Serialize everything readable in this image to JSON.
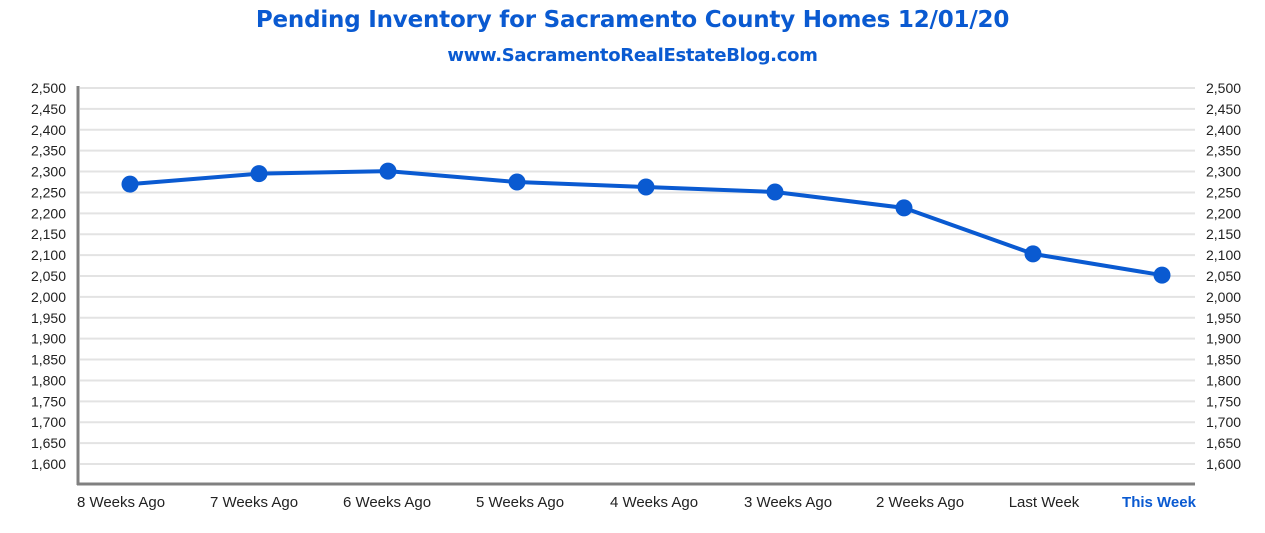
{
  "colors": {
    "accent": "#0a5ad1",
    "series": "#0a5ad1",
    "grid": "#e3e3e3",
    "axis": "#808080",
    "text": "#222222"
  },
  "chart_data": {
    "type": "line",
    "title": "Pending Inventory for Sacramento County Homes 12/01/20",
    "subtitle": "www.SacramentoRealEstateBlog.com",
    "xlabel": "",
    "ylabel": "",
    "categories": [
      "8 Weeks Ago",
      "7 Weeks Ago",
      "6 Weeks Ago",
      "5 Weeks Ago",
      "4 Weeks Ago",
      "3 Weeks Ago",
      "2 Weeks Ago",
      "Last Week",
      "This Week"
    ],
    "highlighted_category": "This Week",
    "series": [
      {
        "name": "Pending Inventory",
        "values": [
          2270,
          2295,
          2301,
          2275,
          2263,
          2251,
          2213,
          2103,
          2052
        ]
      }
    ],
    "ylim": [
      1600,
      2500
    ],
    "yticks": [
      1600,
      1650,
      1700,
      1750,
      1800,
      1850,
      1900,
      1950,
      2000,
      2050,
      2100,
      2150,
      2200,
      2250,
      2300,
      2350,
      2400,
      2450,
      2500
    ],
    "ytick_labels": [
      "1,600",
      "1,650",
      "1,700",
      "1,750",
      "1,800",
      "1,850",
      "1,900",
      "1,950",
      "2,000",
      "2,050",
      "2,100",
      "2,150",
      "2,200",
      "2,250",
      "2,300",
      "2,350",
      "2,400",
      "2,450",
      "2,500"
    ],
    "secondary_y_axis": true,
    "grid": true,
    "legend": "none"
  }
}
